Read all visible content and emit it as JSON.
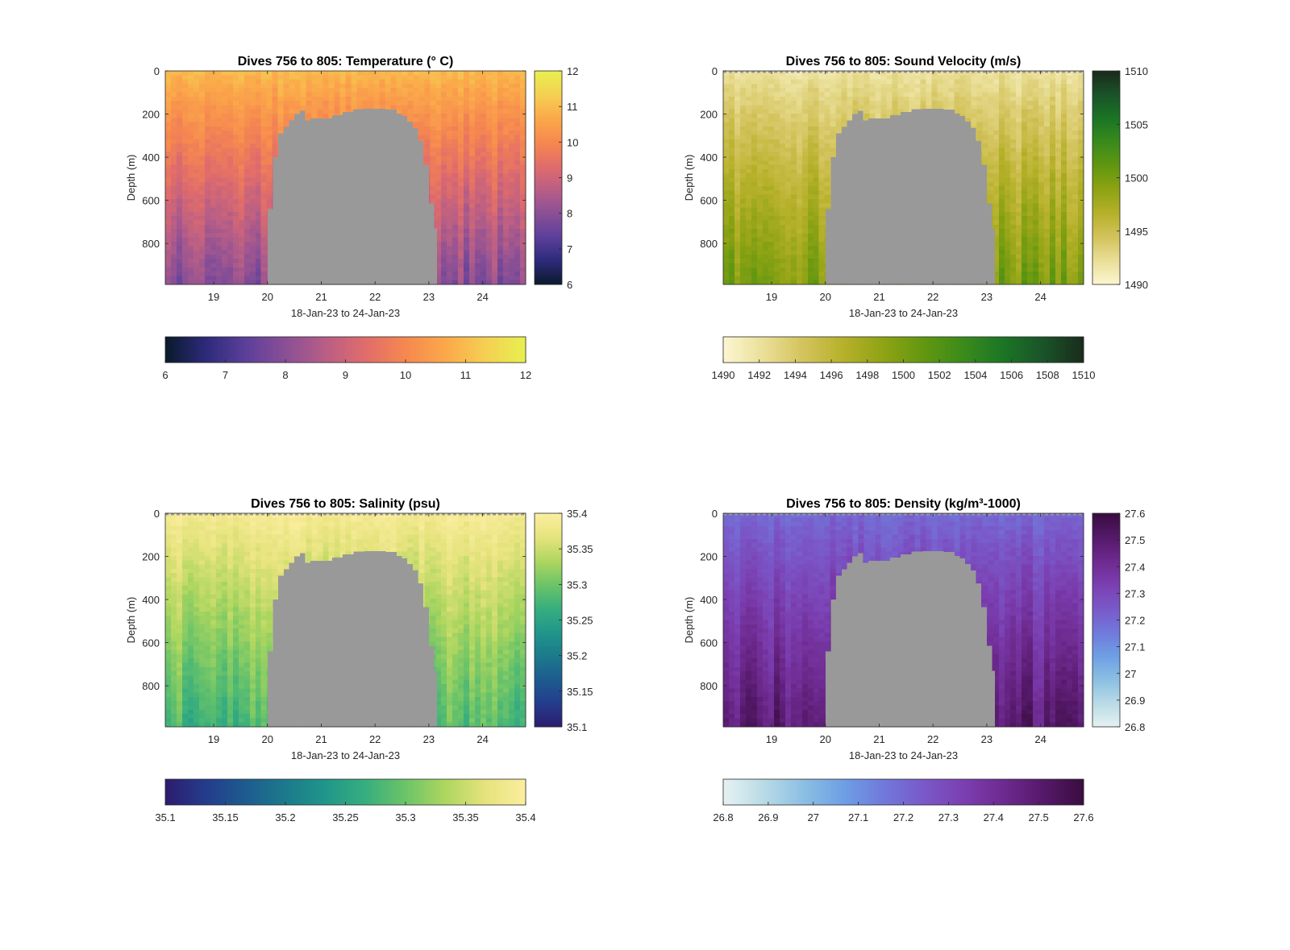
{
  "figure": {
    "panels": [
      {
        "title": "Dives 756 to 805: Temperature (° C)",
        "cmap": [
          "#0a1a2a",
          "#2c2a7a",
          "#5b3f9a",
          "#8a4f96",
          "#b85e86",
          "#e06c6b",
          "#f6884f",
          "#fba84a",
          "#f5cf52",
          "#e8f04f"
        ],
        "cbar_right": {
          "min": 6,
          "max": 12,
          "ticks": [
            "6",
            "7",
            "8",
            "9",
            "10",
            "11",
            "12"
          ]
        },
        "cbar_bottom": {
          "min": 6,
          "max": 12,
          "ticks": [
            "6",
            "7",
            "8",
            "9",
            "10",
            "11",
            "12"
          ]
        }
      },
      {
        "title": "Dives 756 to 805: Sound Velocity (m/s)",
        "cmap": [
          "#fcf6d2",
          "#eadf98",
          "#d3c35c",
          "#b6b12a",
          "#8fa314",
          "#629710",
          "#3a8b1b",
          "#1b7525",
          "#1a5329",
          "#1a2b1c"
        ],
        "cbar_right": {
          "min": 1490,
          "max": 1510,
          "ticks": [
            "1490",
            "1495",
            "1500",
            "1505",
            "1510"
          ]
        },
        "cbar_bottom": {
          "min": 1490,
          "max": 1510,
          "ticks": [
            "1490",
            "1492",
            "1494",
            "1496",
            "1498",
            "1500",
            "1502",
            "1504",
            "1506",
            "1508",
            "1510"
          ]
        }
      },
      {
        "title": "Dives 756 to 805: Salinity (psu)",
        "cmap": [
          "#2c1c6e",
          "#243c8c",
          "#1d5b8f",
          "#1c7a8c",
          "#20968a",
          "#37ae7e",
          "#6cc468",
          "#aed65f",
          "#e6e37d",
          "#fbeea0"
        ],
        "cbar_right": {
          "min": 35.1,
          "max": 35.4,
          "ticks": [
            "35.1",
            "35.15",
            "35.2",
            "35.25",
            "35.3",
            "35.35",
            "35.4"
          ]
        },
        "cbar_bottom": {
          "min": 35.1,
          "max": 35.4,
          "ticks": [
            "35.1",
            "35.15",
            "35.2",
            "35.25",
            "35.3",
            "35.35",
            "35.4"
          ]
        }
      },
      {
        "title": "Dives 756 to 805: Density (kg/m³-1000)",
        "cmap": [
          "#e6f2f2",
          "#b9dbe6",
          "#8cbfe3",
          "#6e9fe4",
          "#7079db",
          "#7a59c9",
          "#7b3fb1",
          "#6e2a8f",
          "#55196a",
          "#3a0d3f"
        ],
        "cbar_right": {
          "min": 26.8,
          "max": 27.6,
          "ticks": [
            "26.8",
            "26.9",
            "27",
            "27.1",
            "27.2",
            "27.3",
            "27.4",
            "27.5",
            "27.6"
          ]
        },
        "cbar_bottom": {
          "min": 26.8,
          "max": 27.6,
          "ticks": [
            "26.8",
            "26.9",
            "27",
            "27.1",
            "27.2",
            "27.3",
            "27.4",
            "27.5",
            "27.6"
          ]
        }
      }
    ]
  },
  "chart_data": [
    {
      "type": "heatmap",
      "title": "Dives 756 to 805: Temperature (° C)",
      "xlabel": "18-Jan-23 to 24-Jan-23",
      "ylabel": "Depth (m)",
      "x_ticks": [
        "19",
        "20",
        "21",
        "22",
        "23",
        "24"
      ],
      "y_ticks": [
        "0",
        "200",
        "400",
        "600",
        "800"
      ],
      "x_tick_values": [
        19,
        20,
        21,
        22,
        23,
        24
      ],
      "y_tick_values": [
        0,
        200,
        400,
        600,
        800
      ],
      "xlim": [
        18.1,
        24.8
      ],
      "ylim": [
        0,
        990
      ],
      "y_reversed": true,
      "colorbar_range": [
        6,
        12
      ],
      "surface_value": 11,
      "bottom_value": 8,
      "no_data_color": "#999999",
      "no_data_region": {
        "x": [
          20.0,
          20.1,
          20.2,
          20.3,
          20.4,
          20.5,
          20.6,
          20.7,
          20.8,
          21.0,
          21.2,
          21.4,
          21.6,
          21.8,
          22.0,
          22.2,
          22.4,
          22.5,
          22.6,
          22.7,
          22.8,
          22.9,
          23.0,
          23.1,
          23.15
        ],
        "top_depth": [
          640,
          400,
          290,
          260,
          230,
          200,
          185,
          230,
          220,
          220,
          205,
          190,
          178,
          175,
          175,
          180,
          198,
          210,
          235,
          265,
          325,
          435,
          615,
          730,
          990
        ]
      }
    },
    {
      "type": "heatmap",
      "title": "Dives 756 to 805: Sound Velocity (m/s)",
      "xlabel": "18-Jan-23 to 24-Jan-23",
      "ylabel": "Depth (m)",
      "x_ticks": [
        "19",
        "20",
        "21",
        "22",
        "23",
        "24"
      ],
      "y_ticks": [
        "0",
        "200",
        "400",
        "600",
        "800"
      ],
      "x_tick_values": [
        19,
        20,
        21,
        22,
        23,
        24
      ],
      "y_tick_values": [
        0,
        200,
        400,
        600,
        800
      ],
      "xlim": [
        18.1,
        24.8
      ],
      "ylim": [
        0,
        990
      ],
      "y_reversed": true,
      "colorbar_range": [
        1490,
        1510
      ],
      "surface_value": 1492,
      "bottom_value": 1500,
      "no_data_color": "#999999",
      "no_data_region": "same as panel 1"
    },
    {
      "type": "heatmap",
      "title": "Dives 756 to 805: Salinity (psu)",
      "xlabel": "18-Jan-23 to 24-Jan-23",
      "ylabel": "Depth (m)",
      "x_ticks": [
        "19",
        "20",
        "21",
        "22",
        "23",
        "24"
      ],
      "y_ticks": [
        "0",
        "200",
        "400",
        "600",
        "800"
      ],
      "x_tick_values": [
        19,
        20,
        21,
        22,
        23,
        24
      ],
      "y_tick_values": [
        0,
        200,
        400,
        600,
        800
      ],
      "xlim": [
        18.1,
        24.8
      ],
      "ylim": [
        0,
        990
      ],
      "y_reversed": true,
      "colorbar_range": [
        35.1,
        35.4
      ],
      "surface_value": 35.39,
      "bottom_value": 35.28,
      "no_data_color": "#999999",
      "no_data_region": "same as panel 1"
    },
    {
      "type": "heatmap",
      "title": "Dives 756 to 805: Density (kg/m³-1000)",
      "xlabel": "18-Jan-23 to 24-Jan-23",
      "ylabel": "Depth (m)",
      "x_ticks": [
        "19",
        "20",
        "21",
        "22",
        "23",
        "24"
      ],
      "y_ticks": [
        "0",
        "200",
        "400",
        "600",
        "800"
      ],
      "x_tick_values": [
        19,
        20,
        21,
        22,
        23,
        24
      ],
      "y_tick_values": [
        0,
        200,
        400,
        600,
        800
      ],
      "xlim": [
        18.1,
        24.8
      ],
      "ylim": [
        0,
        990
      ],
      "y_reversed": true,
      "colorbar_range": [
        26.8,
        27.6
      ],
      "surface_value": 27.2,
      "bottom_value": 27.5,
      "no_data_color": "#999999",
      "no_data_region": "same as panel 1"
    }
  ]
}
